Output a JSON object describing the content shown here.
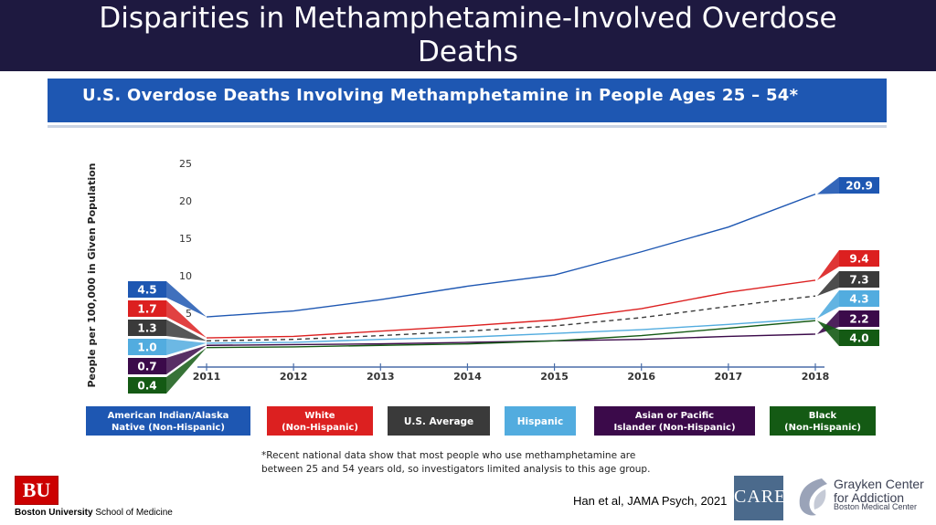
{
  "slide": {
    "title": "Disparities in Methamphetamine-Involved Overdose Deaths"
  },
  "figure": {
    "title": "U.S. Overdose Deaths Involving Methamphetamine in People Ages 25 – 54*",
    "footnote_line1": "*Recent national data show that most people who use methamphetamine are",
    "footnote_line2": "between 25 and 54 years old, so investigators limited analysis to this age group."
  },
  "colors": {
    "header_bg": "#1e1940",
    "banner_bg": "#1e57b2",
    "american_indian": "#1e57b2",
    "white": "#dc2020",
    "us_average": "#3a3a3a",
    "hispanic": "#52acdf",
    "asian_pi": "#3b0a4a",
    "black": "#145a14"
  },
  "chart_data": {
    "type": "line",
    "x": [
      "2011",
      "2012",
      "2013",
      "2014",
      "2015",
      "2016",
      "2017",
      "2018"
    ],
    "ylabel": "People per 100,000 in Given Population",
    "xlabel": "",
    "ylim": [
      0,
      25
    ],
    "yticks": [
      "5",
      "10",
      "15",
      "20",
      "25"
    ],
    "grid": false,
    "series": [
      {
        "name": "American Indian/Alaska Native (Non-Hispanic)",
        "key": "american_indian",
        "values": [
          4.5,
          5.3,
          6.8,
          8.6,
          10.1,
          13.2,
          16.5,
          20.9
        ],
        "start_label": "4.5",
        "end_label": "20.9",
        "dashed": false
      },
      {
        "name": "White (Non-Hispanic)",
        "key": "white",
        "values": [
          1.7,
          1.9,
          2.6,
          3.3,
          4.1,
          5.6,
          7.8,
          9.4
        ],
        "start_label": "1.7",
        "end_label": "9.4",
        "dashed": false
      },
      {
        "name": "U.S. Average",
        "key": "us_average",
        "values": [
          1.3,
          1.5,
          2.0,
          2.6,
          3.3,
          4.4,
          5.9,
          7.3
        ],
        "start_label": "1.3",
        "end_label": "7.3",
        "dashed": true
      },
      {
        "name": "Hispanic",
        "key": "hispanic",
        "values": [
          1.0,
          1.1,
          1.5,
          1.8,
          2.3,
          2.8,
          3.5,
          4.3
        ],
        "start_label": "1.0",
        "end_label": "4.3",
        "dashed": false
      },
      {
        "name": "Asian or Pacific Islander (Non-Hispanic)",
        "key": "asian_pi",
        "values": [
          0.7,
          0.8,
          0.9,
          1.1,
          1.3,
          1.5,
          1.9,
          2.2
        ],
        "start_label": "0.7",
        "end_label": "2.2",
        "dashed": false
      },
      {
        "name": "Black (Non-Hispanic)",
        "key": "black",
        "values": [
          0.4,
          0.5,
          0.7,
          0.9,
          1.3,
          2.0,
          3.0,
          4.0
        ],
        "start_label": "0.4",
        "end_label": "4.0",
        "dashed": false
      }
    ],
    "legend": [
      {
        "key": "american_indian",
        "line1": "American Indian/Alaska",
        "line2": "Native (Non-Hispanic)"
      },
      {
        "key": "white",
        "line1": "White",
        "line2": "(Non-Hispanic)"
      },
      {
        "key": "us_average",
        "line1": "U.S. Average",
        "line2": ""
      },
      {
        "key": "hispanic",
        "line1": "Hispanic",
        "line2": ""
      },
      {
        "key": "asian_pi",
        "line1": "Asian or Pacific",
        "line2": "Islander (Non-Hispanic)"
      },
      {
        "key": "black",
        "line1": "Black",
        "line2": "(Non-Hispanic)"
      }
    ],
    "legend_position": "bottom"
  },
  "footer": {
    "bu_logo_text": "BU",
    "bu_school_bold": "Boston University",
    "bu_school_rest": " School of Medicine",
    "citation": "Han et al, JAMA Psych, 2021",
    "care_logo_text": "CARE",
    "grayken_name_line1": "Grayken Center",
    "grayken_name_line2": "for Addiction",
    "grayken_sub": "Boston Medical Center"
  }
}
